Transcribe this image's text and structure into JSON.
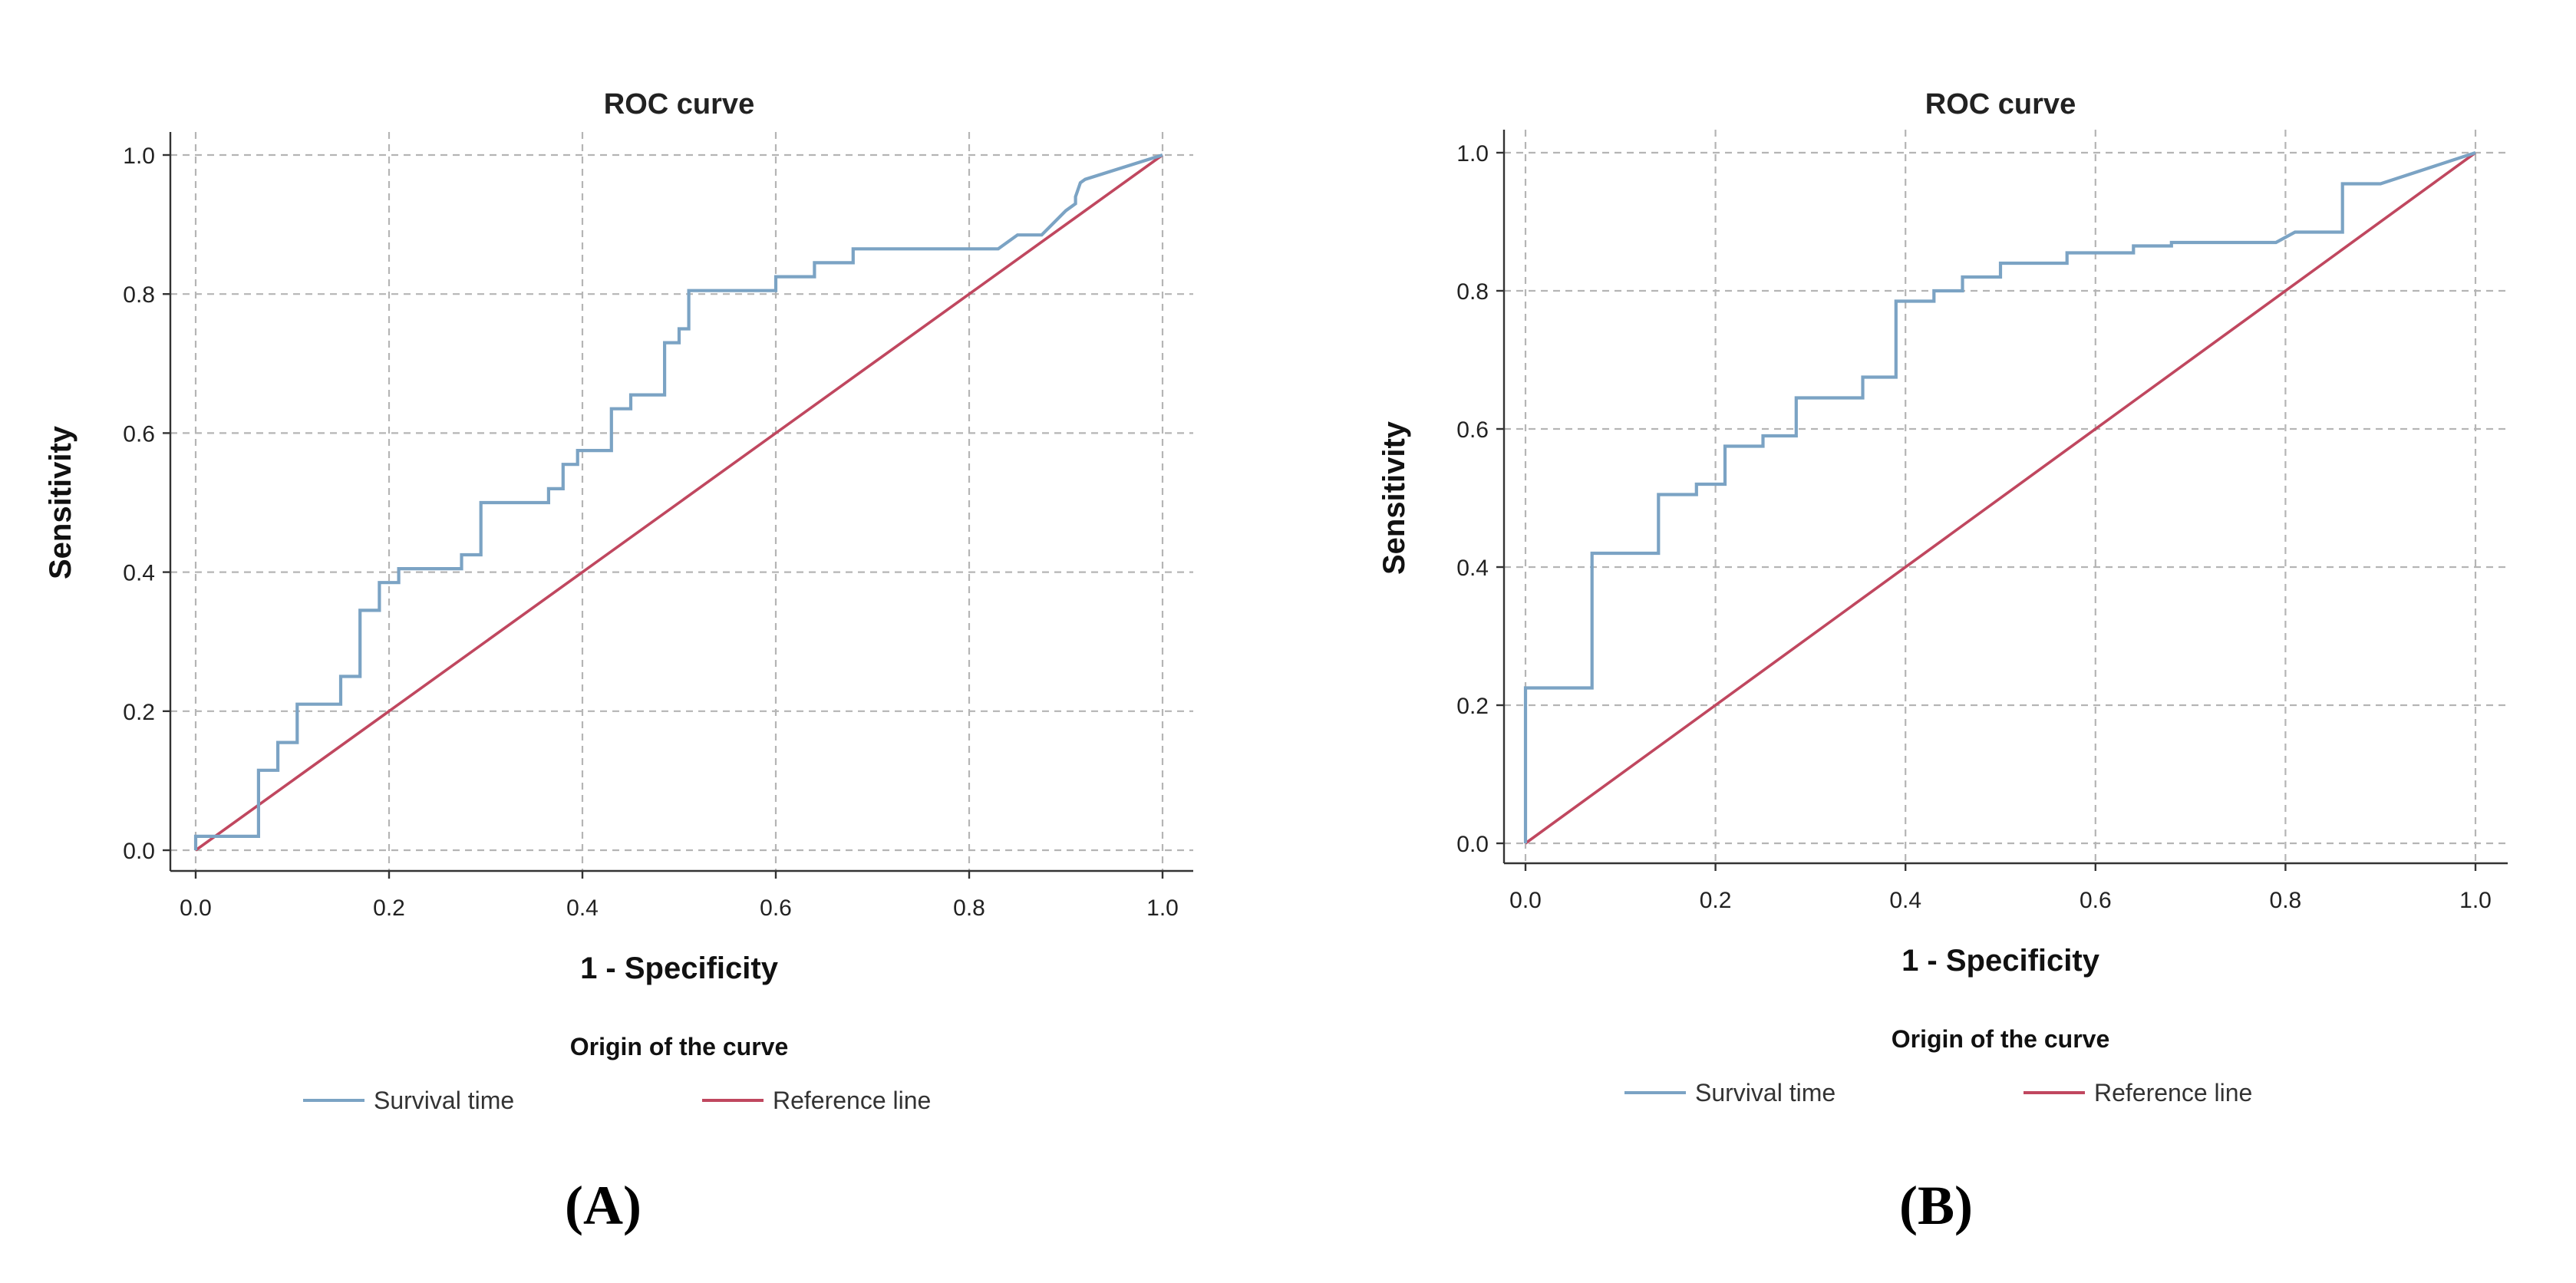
{
  "chart_data": [
    {
      "type": "line",
      "panel_label": "(A)",
      "title": "ROC curve",
      "xlabel": "1 - Specificity",
      "ylabel": "Sensitivity",
      "xlim": [
        0,
        1
      ],
      "ylim": [
        0,
        1
      ],
      "xticks": [
        "0.0",
        "0.2",
        "0.4",
        "0.6",
        "0.8",
        "1.0"
      ],
      "yticks": [
        "0.0",
        "0.2",
        "0.4",
        "0.6",
        "0.8",
        "1.0"
      ],
      "grid": true,
      "legend": {
        "title": "Origin of the curve",
        "placement": "bottom-center"
      },
      "series": [
        {
          "name": "Survival time",
          "color": "#7ba3c4",
          "x": [
            0.0,
            0.0,
            0.065,
            0.065,
            0.085,
            0.085,
            0.105,
            0.105,
            0.15,
            0.15,
            0.17,
            0.17,
            0.19,
            0.19,
            0.21,
            0.21,
            0.275,
            0.275,
            0.295,
            0.295,
            0.365,
            0.365,
            0.38,
            0.38,
            0.395,
            0.395,
            0.43,
            0.43,
            0.45,
            0.45,
            0.485,
            0.485,
            0.5,
            0.5,
            0.51,
            0.51,
            0.6,
            0.6,
            0.64,
            0.64,
            0.68,
            0.68,
            0.83,
            0.85,
            0.85,
            0.86,
            0.875,
            0.9,
            0.91,
            0.91,
            0.915,
            0.92,
            1.0
          ],
          "y": [
            0.0,
            0.02,
            0.02,
            0.115,
            0.115,
            0.155,
            0.155,
            0.21,
            0.21,
            0.25,
            0.25,
            0.345,
            0.345,
            0.385,
            0.385,
            0.405,
            0.405,
            0.425,
            0.425,
            0.5,
            0.5,
            0.52,
            0.52,
            0.555,
            0.555,
            0.575,
            0.575,
            0.635,
            0.635,
            0.655,
            0.655,
            0.73,
            0.73,
            0.75,
            0.75,
            0.805,
            0.805,
            0.825,
            0.825,
            0.845,
            0.845,
            0.865,
            0.865,
            0.885,
            0.885,
            0.885,
            0.885,
            0.92,
            0.93,
            0.94,
            0.96,
            0.965,
            1.0
          ]
        },
        {
          "name": "Reference line",
          "color": "#c0475f",
          "x": [
            0,
            1
          ],
          "y": [
            0,
            1
          ]
        }
      ]
    },
    {
      "type": "line",
      "panel_label": "(B)",
      "title": "ROC curve",
      "xlabel": "1 - Specificity",
      "ylabel": "Sensitivity",
      "xlim": [
        0,
        1
      ],
      "ylim": [
        0,
        1
      ],
      "xticks": [
        "0.0",
        "0.2",
        "0.4",
        "0.6",
        "0.8",
        "1.0"
      ],
      "yticks": [
        "0.0",
        "0.2",
        "0.4",
        "0.6",
        "0.8",
        "1.0"
      ],
      "grid": true,
      "legend": {
        "title": "Origin of the curve",
        "placement": "bottom-center"
      },
      "series": [
        {
          "name": "Survival time",
          "color": "#7ba3c4",
          "x": [
            0.0,
            0.0,
            0.07,
            0.07,
            0.14,
            0.14,
            0.18,
            0.18,
            0.21,
            0.21,
            0.25,
            0.25,
            0.285,
            0.285,
            0.355,
            0.355,
            0.39,
            0.39,
            0.43,
            0.43,
            0.46,
            0.46,
            0.5,
            0.5,
            0.57,
            0.57,
            0.64,
            0.64,
            0.68,
            0.68,
            0.79,
            0.81,
            0.81,
            0.86,
            0.86,
            0.9,
            1.0
          ],
          "y": [
            0.0,
            0.225,
            0.225,
            0.42,
            0.42,
            0.505,
            0.505,
            0.52,
            0.52,
            0.575,
            0.575,
            0.59,
            0.59,
            0.645,
            0.645,
            0.675,
            0.675,
            0.785,
            0.785,
            0.8,
            0.8,
            0.82,
            0.82,
            0.84,
            0.84,
            0.855,
            0.855,
            0.865,
            0.865,
            0.87,
            0.87,
            0.885,
            0.885,
            0.885,
            0.955,
            0.955,
            1.0
          ]
        },
        {
          "name": "Reference line",
          "color": "#c0475f",
          "x": [
            0,
            1
          ],
          "y": [
            0,
            1
          ]
        }
      ]
    }
  ]
}
